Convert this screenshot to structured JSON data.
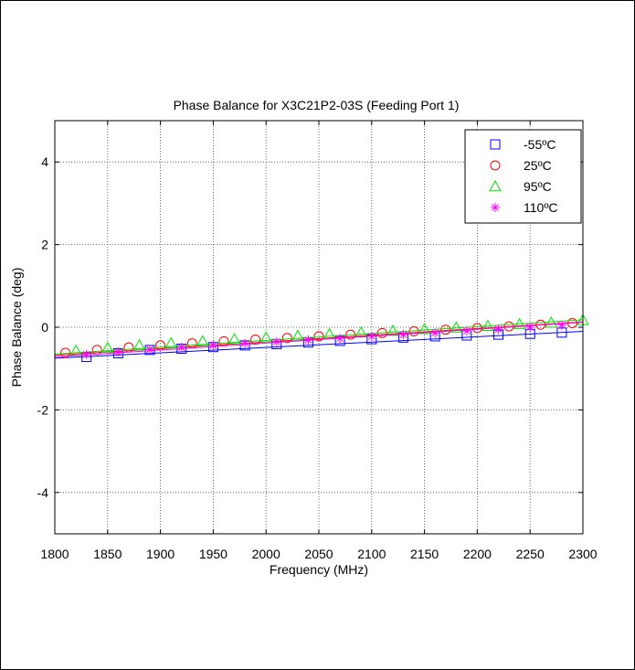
{
  "chart_data": {
    "type": "line",
    "title": "Phase Balance for X3C21P2-03S (Feeding Port 1)",
    "xlabel": "Frequency (MHz)",
    "ylabel": "Phase Balance (deg)",
    "xlim": [
      1800,
      2300
    ],
    "ylim": [
      -5,
      5
    ],
    "xticks": [
      1800,
      1850,
      1900,
      1950,
      2000,
      2050,
      2100,
      2150,
      2200,
      2250,
      2300
    ],
    "yticks": [
      -4,
      -2,
      0,
      2,
      4
    ],
    "grid": true,
    "legend_position": "top-right",
    "series": [
      {
        "name": "-55ºC",
        "color": "#0000ff",
        "marker": "square",
        "line_x": [
          1800,
          2300
        ],
        "line_y": [
          -0.75,
          -0.1
        ],
        "marker_x": [
          1830,
          1860,
          1890,
          1920,
          1950,
          1980,
          2010,
          2040,
          2070,
          2100,
          2130,
          2160,
          2190,
          2220,
          2250,
          2280
        ],
        "marker_y": [
          -0.72,
          -0.63,
          -0.55,
          -0.52,
          -0.48,
          -0.44,
          -0.41,
          -0.37,
          -0.33,
          -0.29,
          -0.25,
          -0.22,
          -0.2,
          -0.18,
          -0.16,
          -0.13
        ]
      },
      {
        "name": "25ºC",
        "color": "#ff0000",
        "marker": "circle",
        "line_x": [
          1800,
          2300
        ],
        "line_y": [
          -0.68,
          0.13
        ],
        "marker_x": [
          1810,
          1840,
          1870,
          1900,
          1930,
          1960,
          1990,
          2020,
          2050,
          2080,
          2110,
          2140,
          2170,
          2200,
          2230,
          2260,
          2290
        ],
        "marker_y": [
          -0.62,
          -0.55,
          -0.49,
          -0.44,
          -0.39,
          -0.34,
          -0.3,
          -0.26,
          -0.22,
          -0.18,
          -0.14,
          -0.1,
          -0.06,
          -0.02,
          0.02,
          0.06,
          0.1
        ]
      },
      {
        "name": "95ºC",
        "color": "#00e000",
        "marker": "triangle",
        "line_x": [
          1800,
          2300
        ],
        "line_y": [
          -0.65,
          0.18
        ],
        "marker_x": [
          1820,
          1850,
          1880,
          1910,
          1940,
          1970,
          2000,
          2030,
          2060,
          2090,
          2120,
          2150,
          2180,
          2210,
          2240,
          2270,
          2300
        ],
        "marker_y": [
          -0.57,
          -0.5,
          -0.44,
          -0.39,
          -0.34,
          -0.29,
          -0.25,
          -0.21,
          -0.17,
          -0.13,
          -0.09,
          -0.05,
          -0.01,
          0.03,
          0.07,
          0.11,
          0.17
        ]
      },
      {
        "name": "110ºC",
        "color": "#ff00ff",
        "marker": "asterisk",
        "line_x": [
          1800,
          2300
        ],
        "line_y": [
          -0.72,
          0.12
        ],
        "marker_x": [
          1830,
          1860,
          1890,
          1920,
          1950,
          1980,
          2010,
          2040,
          2070,
          2100,
          2130,
          2160,
          2190,
          2220,
          2250,
          2280
        ],
        "marker_y": [
          -0.66,
          -0.6,
          -0.54,
          -0.49,
          -0.44,
          -0.39,
          -0.35,
          -0.31,
          -0.27,
          -0.22,
          -0.18,
          -0.14,
          -0.09,
          -0.05,
          0.0,
          0.05
        ]
      }
    ]
  }
}
